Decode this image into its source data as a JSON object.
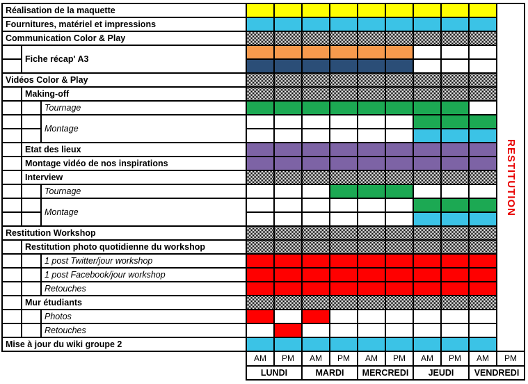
{
  "chart_data": {
    "type": "table",
    "title": "Workshop week planning grid (Gantt-style)",
    "columns": [
      "AM",
      "PM",
      "AM",
      "PM",
      "AM",
      "PM",
      "AM",
      "PM",
      "AM",
      "PM"
    ],
    "days": [
      "LUNDI",
      "MARDI",
      "MERCREDI",
      "JEUDI",
      "VENDREDI"
    ],
    "restitution_label": "RESTITUTION",
    "colors": {
      "yellow": "#FFFF00",
      "cyan": "#3BC3E6",
      "orange": "#F79A4D",
      "navy": "#2B4E77",
      "green": "#1CA953",
      "purple": "#7D63A5",
      "red": "#FF0000",
      "hatch": "black-white-checkerboard",
      "restitution_text": "#E80000",
      "border": "#000000"
    },
    "rows": [
      {
        "label": "Réalisation de la maquette",
        "level": 0,
        "italic": false,
        "span": 1,
        "cells": [
          "yellow",
          "yellow",
          "yellow",
          "yellow",
          "yellow",
          "yellow",
          "yellow",
          "yellow",
          "yellow"
        ]
      },
      {
        "label": "Fournitures, matériel et impressions",
        "level": 0,
        "italic": false,
        "span": 1,
        "cells": [
          "cyan",
          "cyan",
          "cyan",
          "cyan",
          "cyan",
          "cyan",
          "cyan",
          "cyan",
          "cyan"
        ]
      },
      {
        "label": "Communication Color & Play",
        "level": 0,
        "italic": false,
        "span": 1,
        "cells": [
          "hatch",
          "hatch",
          "hatch",
          "hatch",
          "hatch",
          "hatch",
          "hatch",
          "hatch",
          "hatch"
        ]
      },
      {
        "label": "Fiche récap' A3",
        "level": 1,
        "italic": false,
        "span": 2,
        "cells": [
          "orange",
          "orange",
          "orange",
          "orange",
          "orange",
          "orange",
          null,
          null,
          null
        ]
      },
      {
        "label": null,
        "level": 1,
        "italic": false,
        "span": 0,
        "cells": [
          "navy",
          "navy",
          "navy",
          "navy",
          "navy",
          "navy",
          null,
          null,
          null
        ]
      },
      {
        "label": "Vidéos Color & Play",
        "level": 0,
        "italic": false,
        "span": 1,
        "cells": [
          "hatch",
          "hatch",
          "hatch",
          "hatch",
          "hatch",
          "hatch",
          "hatch",
          "hatch",
          "hatch"
        ]
      },
      {
        "label": "Making-off",
        "level": 1,
        "italic": false,
        "span": 1,
        "cells": [
          "hatch",
          "hatch",
          "hatch",
          "hatch",
          "hatch",
          "hatch",
          "hatch",
          "hatch",
          "hatch"
        ]
      },
      {
        "label": "Tournage",
        "level": 2,
        "italic": true,
        "span": 1,
        "cells": [
          "green",
          "green",
          "green",
          "green",
          "green",
          "green",
          "green",
          "green",
          null
        ]
      },
      {
        "label": "Montage",
        "level": 2,
        "italic": true,
        "span": 2,
        "cells": [
          null,
          null,
          null,
          null,
          null,
          null,
          "green",
          "green",
          "green"
        ]
      },
      {
        "label": null,
        "level": 2,
        "italic": true,
        "span": 0,
        "cells": [
          null,
          null,
          null,
          null,
          null,
          null,
          "cyan",
          "cyan",
          "cyan"
        ]
      },
      {
        "label": "Etat des lieux",
        "level": 1,
        "italic": false,
        "span": 1,
        "cells": [
          "purple",
          "purple",
          "purple",
          "purple",
          "purple",
          "purple",
          "purple",
          "purple",
          "purple"
        ]
      },
      {
        "label": "Montage vidéo de nos inspirations",
        "level": 1,
        "italic": false,
        "span": 1,
        "cells": [
          "purple",
          "purple",
          "purple",
          "purple",
          "purple",
          "purple",
          "purple",
          "purple",
          "purple"
        ]
      },
      {
        "label": "Interview",
        "level": 1,
        "italic": false,
        "span": 1,
        "cells": [
          "hatch",
          "hatch",
          "hatch",
          "hatch",
          "hatch",
          "hatch",
          "hatch",
          "hatch",
          "hatch"
        ]
      },
      {
        "label": "Tournage",
        "level": 2,
        "italic": true,
        "span": 1,
        "cells": [
          null,
          null,
          null,
          "green",
          "green",
          "green",
          null,
          null,
          null
        ]
      },
      {
        "label": "Montage",
        "level": 2,
        "italic": true,
        "span": 2,
        "cells": [
          null,
          null,
          null,
          null,
          null,
          null,
          "green",
          "green",
          "green"
        ]
      },
      {
        "label": null,
        "level": 2,
        "italic": true,
        "span": 0,
        "cells": [
          null,
          null,
          null,
          null,
          null,
          null,
          "cyan",
          "cyan",
          "cyan"
        ]
      },
      {
        "label": "Restitution Workshop",
        "level": 0,
        "italic": false,
        "span": 1,
        "cells": [
          "hatch",
          "hatch",
          "hatch",
          "hatch",
          "hatch",
          "hatch",
          "hatch",
          "hatch",
          "hatch"
        ]
      },
      {
        "label": "Restitution photo quotidienne du workshop",
        "level": 1,
        "italic": false,
        "span": 1,
        "cells": [
          "hatch",
          "hatch",
          "hatch",
          "hatch",
          "hatch",
          "hatch",
          "hatch",
          "hatch",
          "hatch"
        ]
      },
      {
        "label": "1 post Twitter/jour workshop",
        "level": 2,
        "italic": true,
        "span": 1,
        "cells": [
          "red",
          "red",
          "red",
          "red",
          "red",
          "red",
          "red",
          "red",
          "red"
        ]
      },
      {
        "label": "1 post Facebook/jour workshop",
        "level": 2,
        "italic": true,
        "span": 1,
        "cells": [
          "red",
          "red",
          "red",
          "red",
          "red",
          "red",
          "red",
          "red",
          "red"
        ]
      },
      {
        "label": "Retouches",
        "level": 2,
        "italic": true,
        "span": 1,
        "cells": [
          "red",
          "red",
          "red",
          "red",
          "red",
          "red",
          "red",
          "red",
          "red"
        ]
      },
      {
        "label": "Mur étudiants",
        "level": 1,
        "italic": false,
        "span": 1,
        "cells": [
          "hatch",
          "hatch",
          "hatch",
          "hatch",
          "hatch",
          "hatch",
          "hatch",
          "hatch",
          "hatch"
        ]
      },
      {
        "label": "Photos",
        "level": 2,
        "italic": true,
        "span": 1,
        "cells": [
          "red",
          null,
          "red",
          null,
          null,
          null,
          null,
          null,
          null
        ]
      },
      {
        "label": "Retouches",
        "level": 2,
        "italic": true,
        "span": 1,
        "cells": [
          null,
          "red",
          null,
          null,
          null,
          null,
          null,
          null,
          null
        ]
      },
      {
        "label": "Mise à jour du wiki groupe 2",
        "level": 0,
        "italic": false,
        "span": 1,
        "cells": [
          "cyan",
          "cyan",
          "cyan",
          "cyan",
          "cyan",
          "cyan",
          "cyan",
          "cyan",
          "cyan"
        ]
      }
    ]
  }
}
